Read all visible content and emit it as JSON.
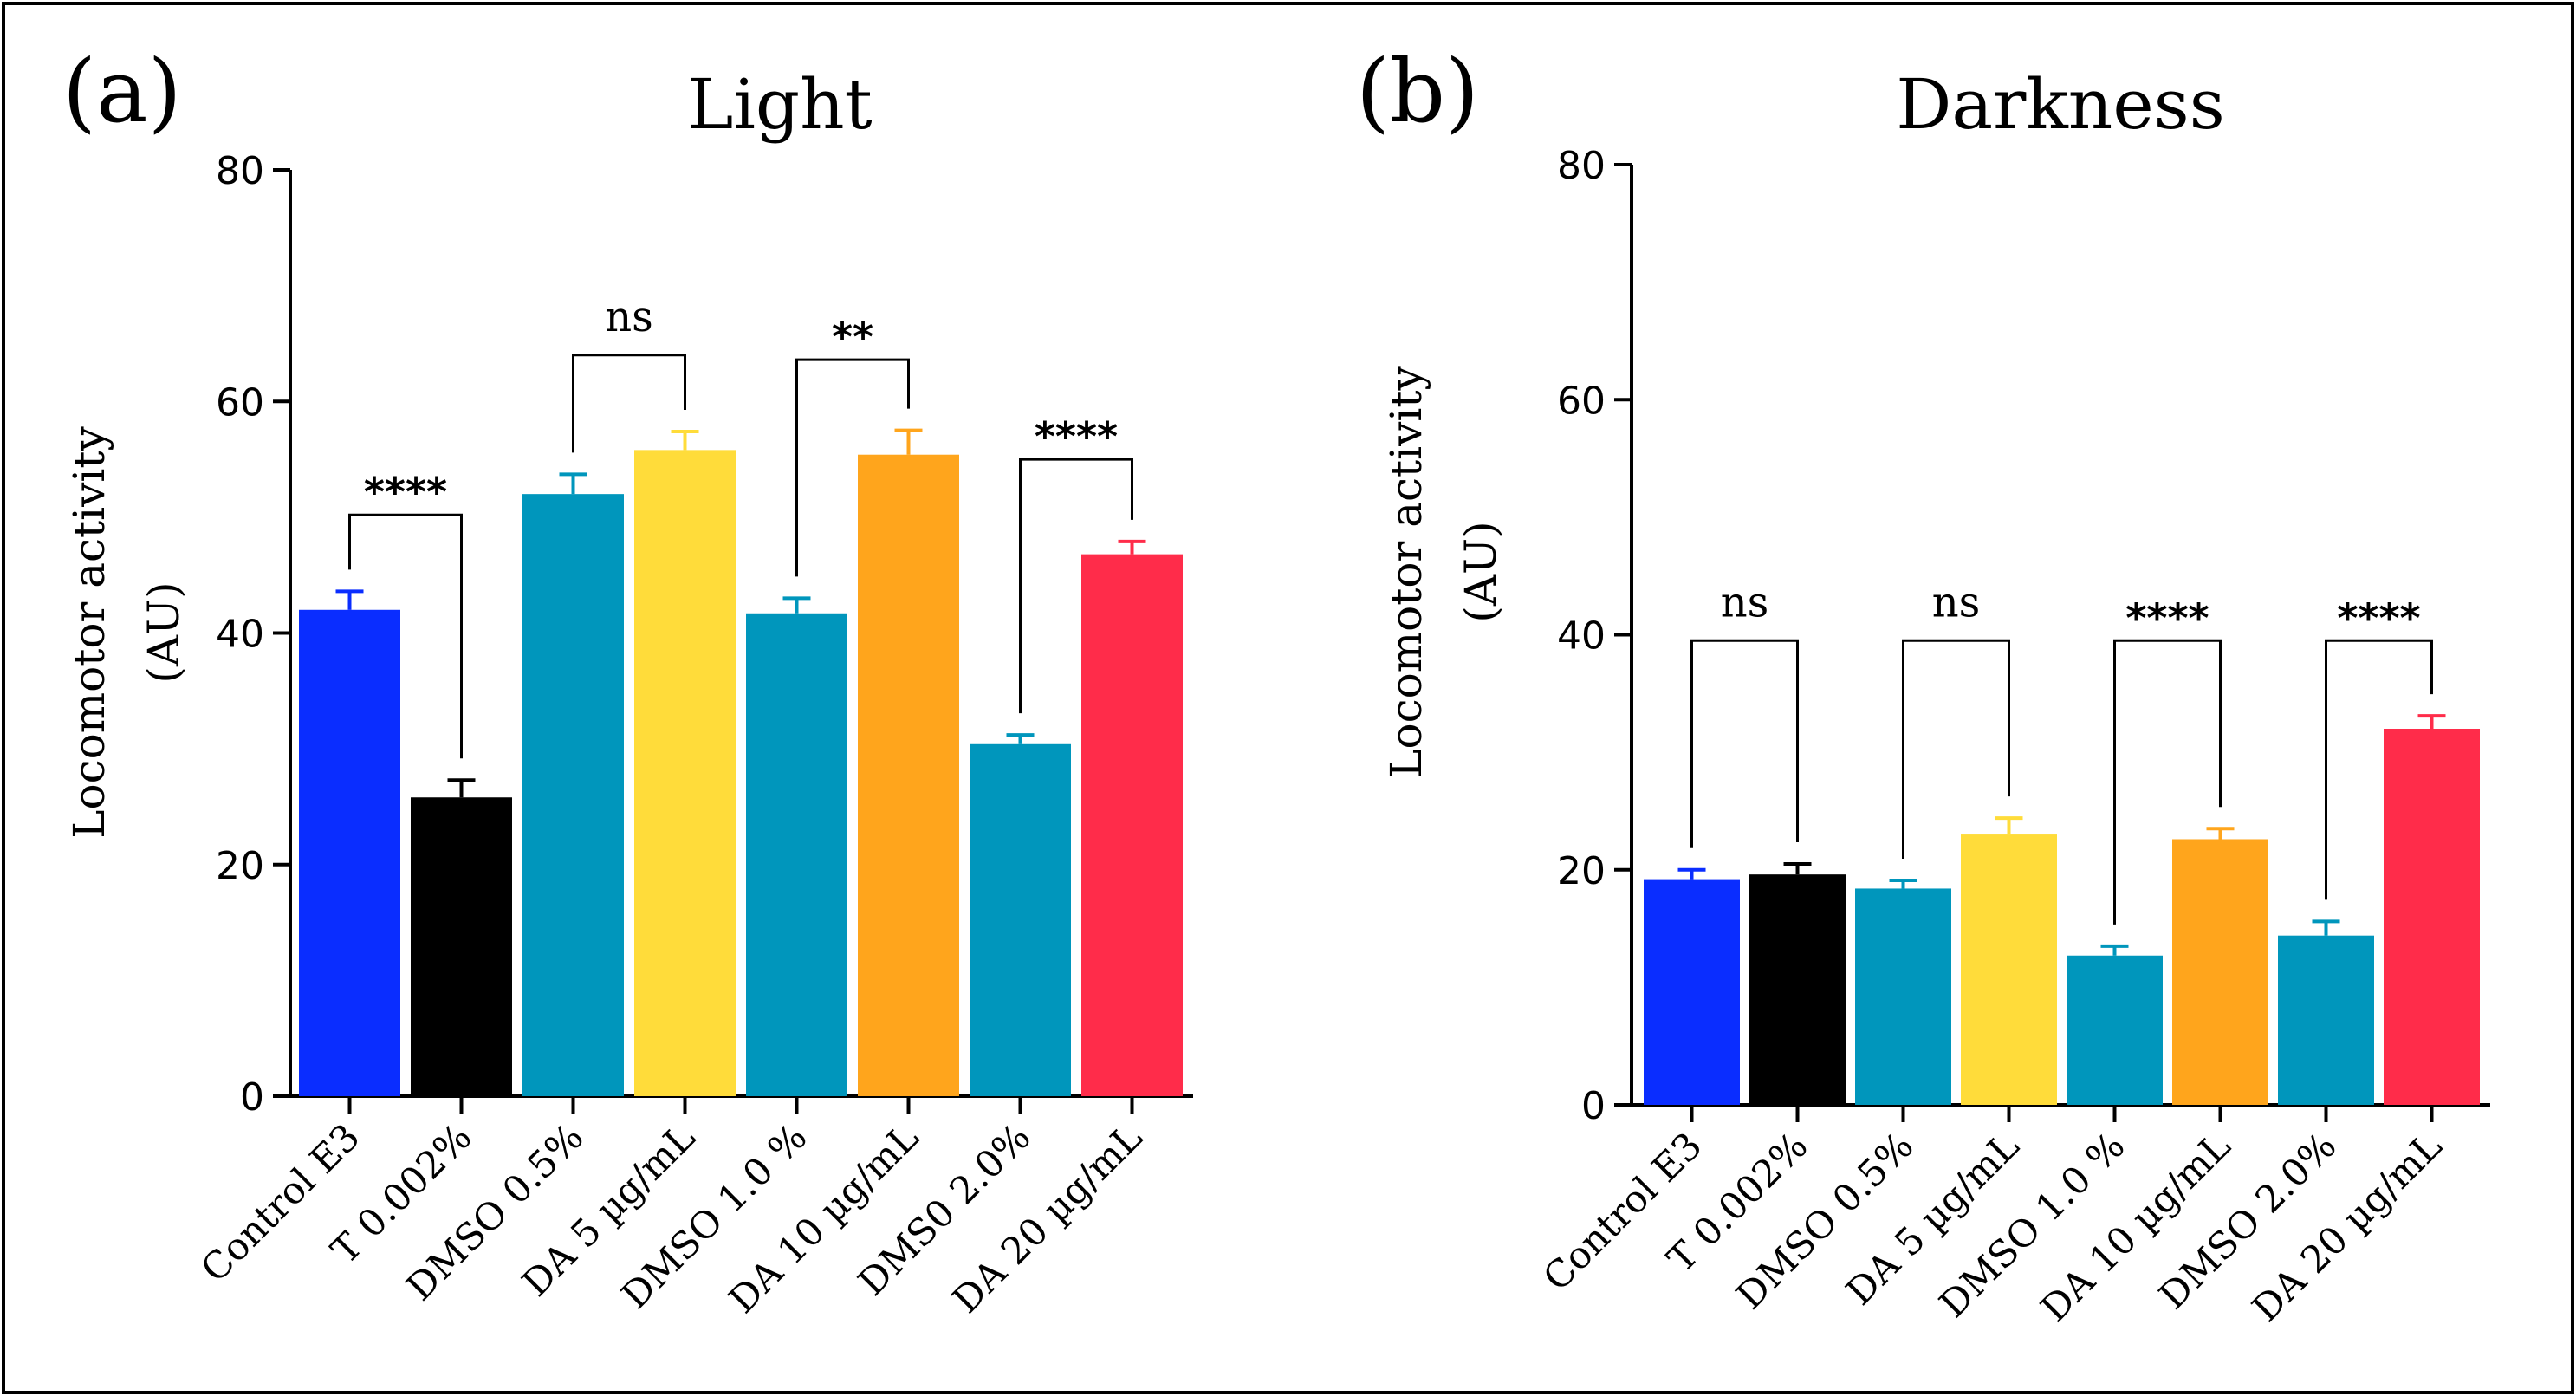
{
  "chart_data": [
    {
      "panel": "(a)",
      "type": "bar",
      "title": "Light",
      "ylabel": [
        "Locomotor activity",
        "(AU)"
      ],
      "xlabel": "",
      "ylim": [
        0,
        80
      ],
      "yticks": [
        0,
        20,
        40,
        60,
        80
      ],
      "categories": [
        "Control E3",
        "T 0.002%",
        "DMSO 0.5%",
        "DA 5 µg/mL",
        "DMSO 1.0 %",
        "DA 10 µg/mL",
        "DMS0 2.0%",
        "DA 20 µg/mL"
      ],
      "values": [
        42,
        25.8,
        52,
        55.8,
        41.7,
        55.4,
        30.4,
        46.8
      ],
      "errors": [
        1.6,
        1.5,
        1.7,
        1.6,
        1.3,
        2.1,
        0.8,
        1.1
      ],
      "colors": [
        "#0a2dff",
        "#000000",
        "#0096bc",
        "#ffdc3a",
        "#0096bc",
        "#ffa51c",
        "#0096bc",
        "#ff2c4a"
      ],
      "comparisons": [
        {
          "from": 0,
          "to": 1,
          "label": "****"
        },
        {
          "from": 2,
          "to": 3,
          "label": "ns"
        },
        {
          "from": 4,
          "to": 5,
          "label": "**"
        },
        {
          "from": 6,
          "to": 7,
          "label": "****"
        }
      ]
    },
    {
      "panel": "(b)",
      "type": "bar",
      "title": "Darkness",
      "ylabel": [
        "Locomotor activity",
        "(AU)"
      ],
      "xlabel": "",
      "ylim": [
        0,
        80
      ],
      "yticks": [
        0,
        20,
        40,
        60,
        80
      ],
      "categories": [
        "Control E3",
        "T 0.002%",
        "DMSO 0.5%",
        "DA 5 µg/mL",
        "DMSO 1.0 %",
        "DA 10 µg/mL",
        "DMSO 2.0%",
        "DA 20 µg/mL"
      ],
      "values": [
        19.2,
        19.6,
        18.4,
        23,
        12.7,
        22.6,
        14.4,
        32
      ],
      "errors": [
        0.8,
        0.9,
        0.7,
        1.4,
        0.8,
        0.9,
        1.2,
        1.1
      ],
      "colors": [
        "#0a2dff",
        "#000000",
        "#0096bc",
        "#ffdc3a",
        "#0096bc",
        "#ffa51c",
        "#0096bc",
        "#ff2c4a"
      ],
      "comparisons": [
        {
          "from": 0,
          "to": 1,
          "label": "ns"
        },
        {
          "from": 2,
          "to": 3,
          "label": "ns"
        },
        {
          "from": 4,
          "to": 5,
          "label": "****"
        },
        {
          "from": 6,
          "to": 7,
          "label": "****"
        }
      ]
    }
  ]
}
